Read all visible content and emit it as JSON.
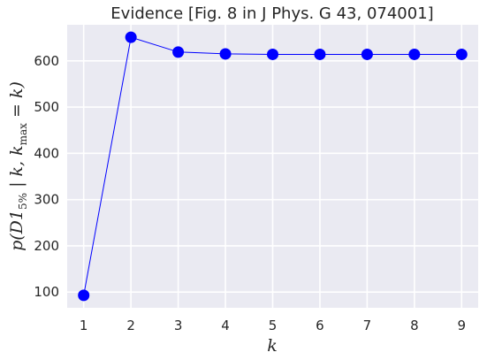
{
  "chart_data": {
    "type": "line",
    "title": "Evidence [Fig. 8 in J Phys. G 43, 074001]",
    "xlabel": "k",
    "ylabel": {
      "p": "p(D1",
      "sub1": "5%",
      "mid": " | k, k",
      "sub2": "max",
      "end": " = k)"
    },
    "x": [
      1,
      2,
      3,
      4,
      5,
      6,
      7,
      8,
      9
    ],
    "y": [
      93,
      651,
      619,
      615,
      614,
      614,
      614,
      614,
      614
    ],
    "xlim": [
      0.65,
      9.35
    ],
    "ylim": [
      66,
      678
    ],
    "xticks": [
      "1",
      "2",
      "3",
      "4",
      "5",
      "6",
      "7",
      "8",
      "9"
    ],
    "yticks": [
      "100",
      "200",
      "300",
      "400",
      "500",
      "600"
    ],
    "ytick_values": [
      100,
      200,
      300,
      400,
      500,
      600
    ],
    "grid": true,
    "line_color": "#0000ff",
    "marker_color": "#0000ff",
    "background_color": "#eaeaf2"
  }
}
